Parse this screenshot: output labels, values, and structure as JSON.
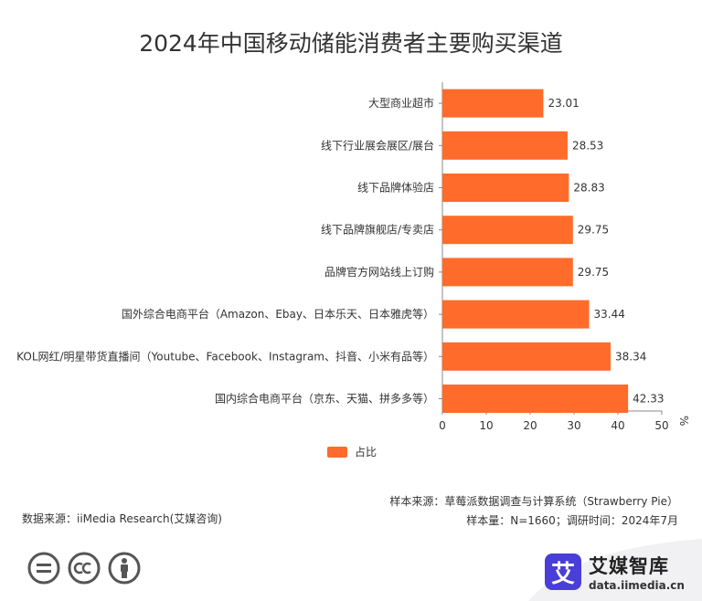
{
  "title": "2024年中国移动储能消费者主要购买渠道",
  "chart_data": {
    "type": "bar",
    "orientation": "horizontal",
    "categories": [
      "大型商业超市",
      "线下行业展会展区/展台",
      "线下品牌体验店",
      "线下品牌旗舰店/专卖店",
      "品牌官方网站线上订购",
      "国外综合电商平台（Amazon、Ebay、日本乐天、日本雅虎等）",
      "KOL网红/明星带货直播间（Youtube、Facebook、Instagram、抖音、小米有品等）",
      "国内综合电商平台（京东、天猫、拼多多等）"
    ],
    "series": [
      {
        "name": "占比",
        "values": [
          23.01,
          28.53,
          28.83,
          29.75,
          29.75,
          33.44,
          38.34,
          42.33
        ]
      }
    ],
    "xlim": [
      0,
      50
    ],
    "xticks": [
      "0",
      "10",
      "20",
      "30",
      "40",
      "50"
    ],
    "unit": "%",
    "bar_color": "#FF6B2B",
    "legend_position": "bottom"
  },
  "footer": {
    "source_left": "数据来源：iiMedia Research(艾媒咨询)",
    "sample_source": "样本来源：草莓派数据调查与计算系统（Strawberry Pie）",
    "sample_size": "样本量：N=1660；调研时间：2024年7月"
  },
  "brand": {
    "logo_char": "艾",
    "name": "艾媒智库",
    "url": "data.iimedia.cn"
  }
}
